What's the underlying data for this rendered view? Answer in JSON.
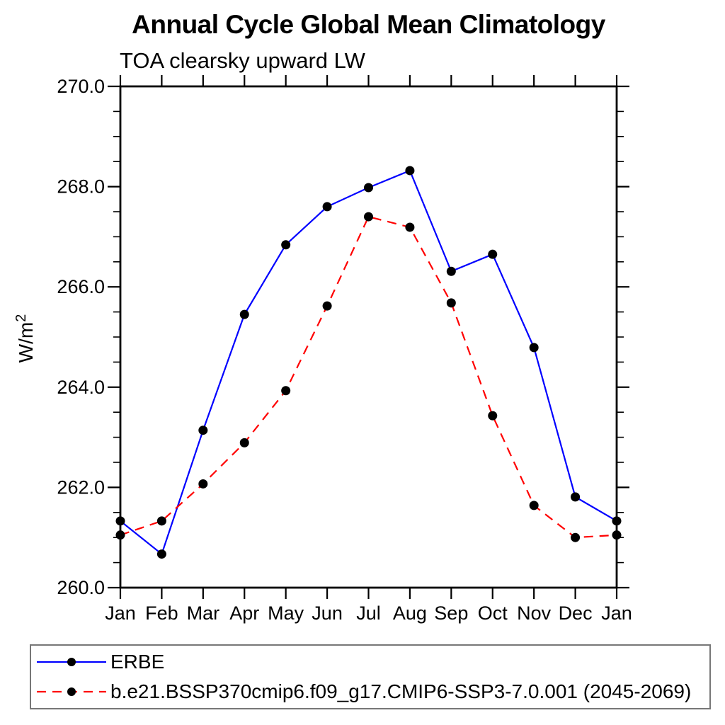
{
  "title": "Annual Cycle Global Mean Climatology",
  "subtitle": "TOA clearsky upward LW",
  "ylabel": {
    "base": "W/m",
    "superscript": "2"
  },
  "chart_data": {
    "type": "line",
    "x_categories": [
      "Jan",
      "Feb",
      "Mar",
      "Apr",
      "May",
      "Jun",
      "Jul",
      "Aug",
      "Sep",
      "Oct",
      "Nov",
      "Dec",
      "Jan"
    ],
    "series": [
      {
        "name": "erbe",
        "label": "ERBE",
        "color": "#0000ff",
        "line_style": "solid",
        "marker": "black-circle",
        "values": [
          261.33,
          260.67,
          263.14,
          265.45,
          266.84,
          267.6,
          267.98,
          268.32,
          266.31,
          266.65,
          264.79,
          261.81,
          261.33
        ]
      },
      {
        "name": "model",
        "label": "b.e21.BSSP370cmip6.f09_g17.CMIP6-SSP3-7.0.001 (2045-2069)",
        "color": "#ff0000",
        "line_style": "dashed",
        "marker": "black-circle",
        "values": [
          261.05,
          261.33,
          262.07,
          262.89,
          263.93,
          265.62,
          267.4,
          267.19,
          265.68,
          263.43,
          261.64,
          261.0,
          261.05
        ]
      }
    ],
    "ylim": [
      260.0,
      270.0
    ],
    "yticks": [
      260,
      262,
      264,
      266,
      268,
      270
    ],
    "ytick_labels": [
      "260.0",
      "262.0",
      "264.0",
      "266.0",
      "268.0",
      "270.0"
    ],
    "y_minor_step": 0.5,
    "grid": "off",
    "legend_position": "bottom-left-box",
    "marker_color": "#000000",
    "frame_color": "#000000"
  }
}
